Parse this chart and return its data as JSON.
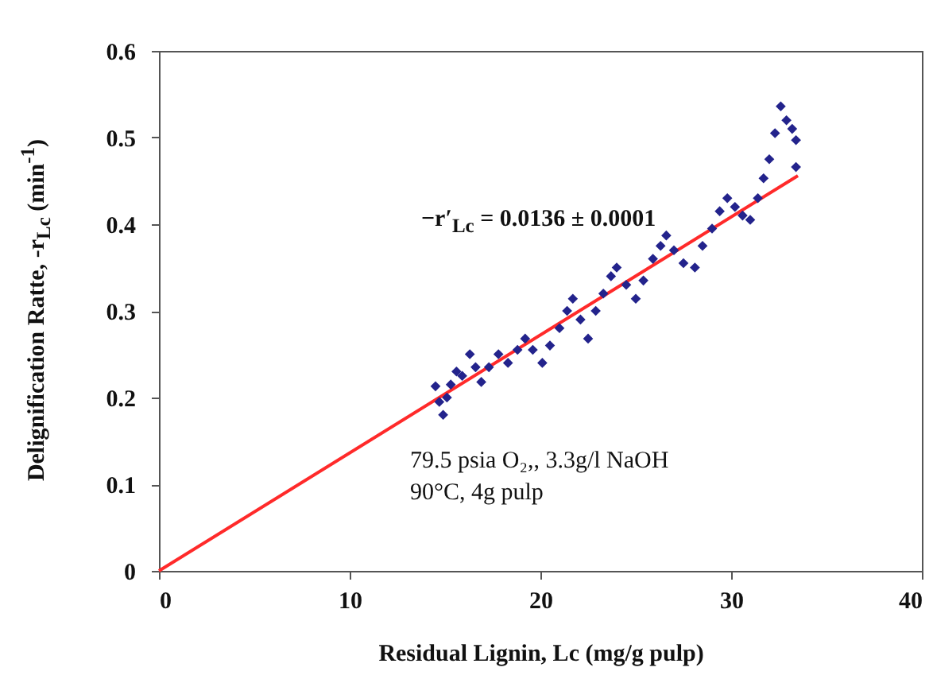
{
  "chart_data": {
    "type": "scatter",
    "xlabel": "Residual Lignin, Lc (mg/g pulp)",
    "ylabel": "Delignification Ratte, -r$_{Lc}$ (min$^{-1}$)",
    "annotations": [
      "−r′$_{Lc}$ = 0.0136 ± 0.0001",
      "79.5 psia O₂,, 3.3g/l NaOH",
      "90°C, 4g pulp"
    ],
    "xlim": [
      0,
      40
    ],
    "xticks": [
      0,
      10,
      20,
      30,
      40
    ],
    "ylim": [
      0,
      0.6
    ],
    "yticks": [
      0,
      0.1,
      0.2,
      0.3,
      0.4,
      0.5,
      0.6
    ],
    "grid": false,
    "series": [
      {
        "color": "#23238c",
        "marker": "diamond",
        "x": [
          14.5,
          14.7,
          14.9,
          15.1,
          15.3,
          15.6,
          15.9,
          16.3,
          16.6,
          16.9,
          17.3,
          17.8,
          18.3,
          18.8,
          19.2,
          19.6,
          20.1,
          20.5,
          21.0,
          21.4,
          21.7,
          22.1,
          22.5,
          22.9,
          23.3,
          23.7,
          24.0,
          24.5,
          25.0,
          25.4,
          25.9,
          26.3,
          26.6,
          27.0,
          27.5,
          28.1,
          28.5,
          29.0,
          29.4,
          29.8,
          30.2,
          30.6,
          31.0,
          31.4,
          31.7,
          32.0,
          32.3,
          32.6,
          32.9,
          33.2,
          33.4,
          33.4
        ],
        "values": [
          0.213,
          0.195,
          0.18,
          0.2,
          0.215,
          0.23,
          0.225,
          0.25,
          0.235,
          0.218,
          0.235,
          0.25,
          0.24,
          0.255,
          0.268,
          0.255,
          0.24,
          0.26,
          0.28,
          0.3,
          0.314,
          0.29,
          0.268,
          0.3,
          0.32,
          0.34,
          0.35,
          0.33,
          0.314,
          0.335,
          0.36,
          0.375,
          0.387,
          0.37,
          0.355,
          0.35,
          0.375,
          0.395,
          0.415,
          0.43,
          0.42,
          0.41,
          0.405,
          0.43,
          0.453,
          0.475,
          0.505,
          0.536,
          0.52,
          0.51,
          0.497,
          0.466
        ]
      },
      {
        "type": "line",
        "color": "#ff2a2a",
        "x": [
          0,
          33.5
        ],
        "values": [
          0,
          0.456
        ]
      }
    ]
  }
}
